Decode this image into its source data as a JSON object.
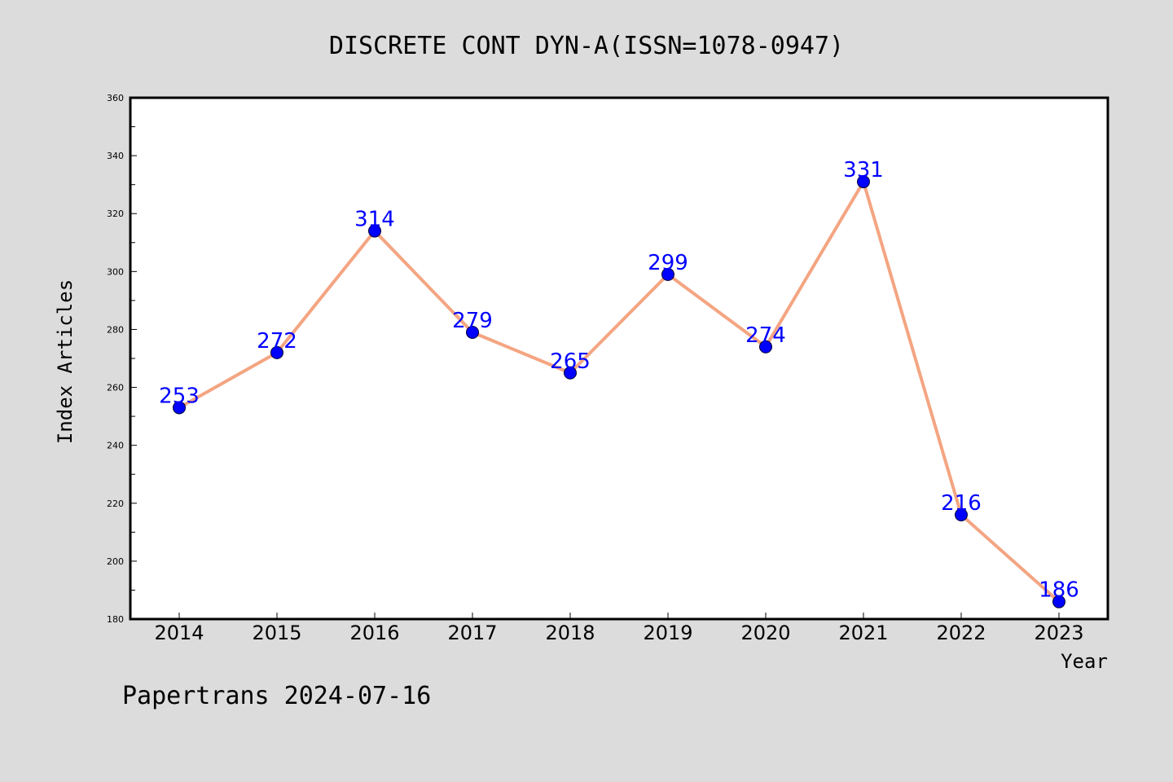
{
  "chart_data": {
    "type": "line",
    "title": "DISCRETE CONT DYN-A(ISSN=1078-0947)",
    "xlabel": "Year",
    "ylabel": "Index Articles",
    "categories": [
      "2014",
      "2015",
      "2016",
      "2017",
      "2018",
      "2019",
      "2020",
      "2021",
      "2022",
      "2023"
    ],
    "series": [
      {
        "values": [
          253,
          272,
          314,
          279,
          265,
          299,
          274,
          331,
          216,
          186
        ]
      }
    ],
    "ylim": [
      180,
      360
    ],
    "yticks": [
      "180",
      "200",
      "220",
      "240",
      "260",
      "280",
      "300",
      "320",
      "340",
      "360"
    ],
    "grid": false,
    "data_labels": true,
    "colors": {
      "line": "#f4a582",
      "marker": "#0000ff",
      "label": "#0000ff",
      "background": "#dcdcdc",
      "plot_background": "#ffffff"
    }
  },
  "footer": {
    "text": "Papertrans 2024-07-16"
  }
}
